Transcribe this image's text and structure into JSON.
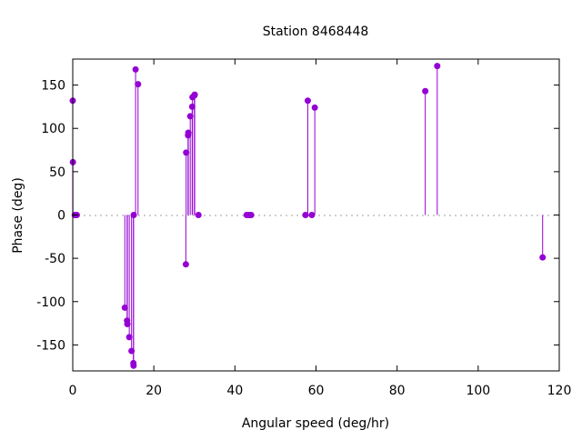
{
  "chart_data": {
    "type": "impulse-scatter",
    "title": "Station 8468448",
    "xlabel": "Angular speed (deg/hr)",
    "ylabel": "Phase (deg)",
    "xlim": [
      0,
      120
    ],
    "ylim": [
      -180,
      180
    ],
    "xticks": [
      0,
      20,
      40,
      60,
      80,
      100,
      120
    ],
    "yticks": [
      -150,
      -100,
      -50,
      0,
      50,
      100,
      150
    ],
    "grid": false,
    "zero_line": "dotted",
    "color": "#9400d3",
    "points": [
      {
        "x": 0.0,
        "y": 132
      },
      {
        "x": 0.04,
        "y": 61
      },
      {
        "x": 0.5,
        "y": 0
      },
      {
        "x": 1.0,
        "y": 0
      },
      {
        "x": 12.85,
        "y": -107
      },
      {
        "x": 13.4,
        "y": -122
      },
      {
        "x": 13.47,
        "y": -126
      },
      {
        "x": 13.94,
        "y": -141
      },
      {
        "x": 14.5,
        "y": -157
      },
      {
        "x": 14.96,
        "y": -171
      },
      {
        "x": 15.0,
        "y": -174
      },
      {
        "x": 15.04,
        "y": 0
      },
      {
        "x": 15.5,
        "y": 168
      },
      {
        "x": 16.1,
        "y": 151
      },
      {
        "x": 27.9,
        "y": -57
      },
      {
        "x": 27.97,
        "y": 72
      },
      {
        "x": 28.44,
        "y": 92
      },
      {
        "x": 28.5,
        "y": 95
      },
      {
        "x": 28.98,
        "y": 114
      },
      {
        "x": 29.46,
        "y": 125
      },
      {
        "x": 29.53,
        "y": 136
      },
      {
        "x": 30.0,
        "y": 138
      },
      {
        "x": 30.08,
        "y": 139
      },
      {
        "x": 31.0,
        "y": 0
      },
      {
        "x": 42.9,
        "y": 0
      },
      {
        "x": 43.5,
        "y": 0
      },
      {
        "x": 44.0,
        "y": 0
      },
      {
        "x": 57.4,
        "y": 0
      },
      {
        "x": 57.97,
        "y": 132
      },
      {
        "x": 58.98,
        "y": 0
      },
      {
        "x": 59.7,
        "y": 124
      },
      {
        "x": 86.95,
        "y": 143
      },
      {
        "x": 89.9,
        "y": 172
      },
      {
        "x": 115.9,
        "y": -49
      }
    ]
  }
}
